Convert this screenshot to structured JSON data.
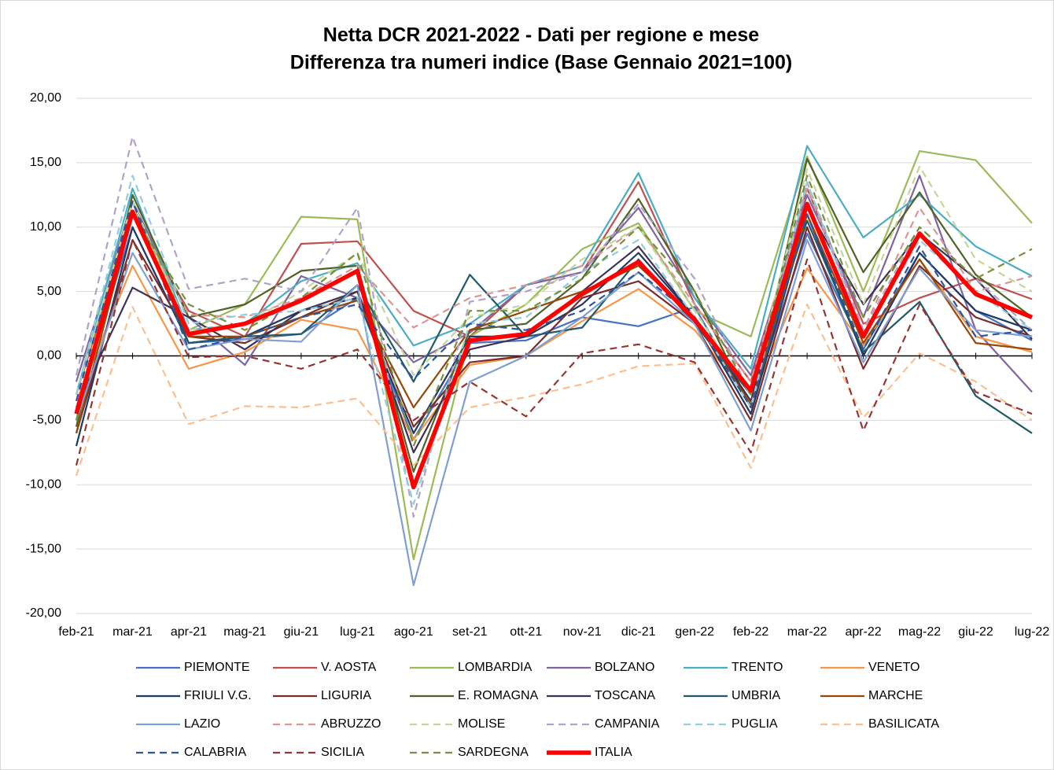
{
  "chart_data": {
    "type": "line",
    "title": "Netta DCR 2021-2022 - Dati per regione e mese",
    "subtitle": "Differenza tra numeri indice (Base Gennaio 2021=100)",
    "categories": [
      "feb-21",
      "mar-21",
      "apr-21",
      "mag-21",
      "giu-21",
      "lug-21",
      "ago-21",
      "set-21",
      "ott-21",
      "nov-21",
      "dic-21",
      "gen-22",
      "feb-22",
      "mar-22",
      "apr-22",
      "mag-22",
      "giu-22",
      "lug-22"
    ],
    "ylim": [
      -20,
      20
    ],
    "yticks": [
      {
        "value": -20,
        "label": "-20,00"
      },
      {
        "value": -15,
        "label": "-15,00"
      },
      {
        "value": -10,
        "label": "-10,00"
      },
      {
        "value": -5,
        "label": "-5,00"
      },
      {
        "value": 0,
        "label": "0,00"
      },
      {
        "value": 5,
        "label": "5,00"
      },
      {
        "value": 10,
        "label": "10,00"
      },
      {
        "value": 15,
        "label": "15,00"
      },
      {
        "value": 20,
        "label": "20,00"
      }
    ],
    "grid": true,
    "legend": "bottom",
    "series": [
      {
        "name": "PIEMONTE",
        "color": "#4472c4",
        "dashed": false,
        "values": [
          -4,
          10,
          1,
          1.3,
          1.7,
          4.5,
          -6.5,
          1,
          1.2,
          3,
          2.3,
          3.8,
          -3.8,
          9.5,
          0.5,
          8,
          3.5,
          1.2
        ]
      },
      {
        "name": "V. AOSTA",
        "color": "#c0504d",
        "dashed": false,
        "values": [
          -3,
          11,
          3.5,
          1.5,
          8.7,
          8.9,
          3.5,
          1.5,
          5.5,
          6.5,
          13.5,
          4,
          -2,
          13,
          2.5,
          4.5,
          6,
          4.4
        ]
      },
      {
        "name": "LOMBARDIA",
        "color": "#9bbb59",
        "dashed": false,
        "values": [
          -5,
          12,
          2,
          4,
          10.8,
          10.6,
          -15.8,
          1.5,
          4,
          8.3,
          10.3,
          3.5,
          1.5,
          15.5,
          5,
          15.9,
          15.2,
          10.3
        ]
      },
      {
        "name": "BOLZANO",
        "color": "#8064a2",
        "dashed": false,
        "values": [
          -2,
          12,
          3,
          -0.7,
          6.2,
          4.5,
          -0.5,
          1.8,
          5.5,
          6.5,
          11.5,
          4.5,
          -1.5,
          12.5,
          3,
          14,
          2,
          -2.8
        ]
      },
      {
        "name": "TRENTO",
        "color": "#4bacc6",
        "dashed": false,
        "values": [
          -3,
          13,
          2,
          2.5,
          5.8,
          7.2,
          0.8,
          2.5,
          5.5,
          7,
          14.2,
          4.5,
          -1,
          16.3,
          9.2,
          12.5,
          8.5,
          6.2
        ]
      },
      {
        "name": "VENETO",
        "color": "#f79646",
        "dashed": false,
        "values": [
          -3.5,
          7,
          -1,
          0.3,
          2.8,
          2,
          -6.5,
          -0.7,
          0,
          2.7,
          5.2,
          2,
          -3.5,
          6.8,
          0.8,
          7.5,
          1.5,
          0.3
        ]
      },
      {
        "name": "FRIULI V.G.",
        "color": "#1f3864",
        "dashed": false,
        "values": [
          -7,
          10,
          1,
          1.5,
          3.5,
          4.5,
          -6,
          1.5,
          1.5,
          4,
          8,
          3,
          -4.5,
          11,
          0,
          8,
          3.5,
          2
        ]
      },
      {
        "name": "LIGURIA",
        "color": "#772c2a",
        "dashed": false,
        "values": [
          -6,
          9,
          1.5,
          1,
          3,
          5,
          -5.5,
          -0.5,
          0,
          4.5,
          5.8,
          2.5,
          -5,
          10,
          -1,
          7,
          3,
          1.5
        ]
      },
      {
        "name": "E. ROMAGNA",
        "color": "#4f6228",
        "dashed": false,
        "values": [
          -5.5,
          12.5,
          3,
          4,
          6.6,
          7,
          -9,
          2,
          2.5,
          6,
          12.2,
          5,
          -4,
          15.3,
          6.5,
          12.7,
          6.3,
          3
        ]
      },
      {
        "name": "TOSCANA",
        "color": "#3f3151",
        "dashed": false,
        "values": [
          -4,
          5.3,
          3,
          0.5,
          3.5,
          5,
          -7.5,
          0.5,
          1.5,
          5,
          8.5,
          3,
          -3.5,
          11.5,
          4,
          9.5,
          6,
          1.3
        ]
      },
      {
        "name": "UMBRIA",
        "color": "#215968",
        "dashed": false,
        "values": [
          -5,
          12,
          1,
          1.5,
          1.7,
          5.5,
          -2,
          6.3,
          1.5,
          2.2,
          7.5,
          2.5,
          -3,
          10.5,
          0.3,
          4.2,
          -3.1,
          -6
        ]
      },
      {
        "name": "MARCHE",
        "color": "#974706",
        "dashed": false,
        "values": [
          -6,
          11,
          1.5,
          1.5,
          3,
          4.3,
          -4,
          2,
          3.5,
          5,
          7,
          3,
          -3.8,
          11,
          1,
          7.5,
          1,
          0.5
        ]
      },
      {
        "name": "LAZIO",
        "color": "#7f9fd0",
        "dashed": false,
        "values": [
          -5,
          8,
          0.5,
          1.3,
          1.1,
          5.5,
          -17.8,
          -2,
          0,
          3,
          6.5,
          2.5,
          -5.8,
          9,
          -0.5,
          6.8,
          2,
          1.5
        ]
      },
      {
        "name": "ABRUZZO",
        "color": "#d99694",
        "dashed": true,
        "values": [
          -4,
          11,
          3.2,
          3,
          4.5,
          7,
          2.2,
          4.5,
          5.5,
          7,
          10,
          4,
          -2,
          13,
          2,
          11.5,
          5,
          6.2
        ]
      },
      {
        "name": "MOLISE",
        "color": "#c3d69b",
        "dashed": true,
        "values": [
          -3,
          12,
          2,
          2.5,
          5,
          8,
          -1.5,
          3,
          4,
          7.5,
          10,
          3.5,
          -3,
          14.5,
          4,
          14.7,
          7.5,
          5
        ]
      },
      {
        "name": "CAMPANIA",
        "color": "#b3a2c7",
        "dashed": true,
        "values": [
          -1.5,
          17,
          5.2,
          6,
          5,
          11.5,
          -12.5,
          4.2,
          5,
          6.5,
          11.8,
          6,
          -3,
          13.5,
          2,
          10,
          6,
          2
        ]
      },
      {
        "name": "PUGLIA",
        "color": "#92cddc",
        "dashed": true,
        "values": [
          -3,
          14,
          2.5,
          3.2,
          3.5,
          4.5,
          -11.5,
          2.5,
          3,
          6.5,
          9,
          3,
          -4,
          13.5,
          1.5,
          9,
          5,
          2
        ]
      },
      {
        "name": "BASILICATA",
        "color": "#fac090",
        "dashed": true,
        "values": [
          -9.3,
          3.8,
          -5.3,
          -3.9,
          -4,
          -3.3,
          -8.5,
          -4,
          -3.2,
          -2.2,
          -0.8,
          -0.6,
          -8.7,
          4,
          -4.8,
          0.2,
          -2,
          -5
        ]
      },
      {
        "name": "CALABRIA",
        "color": "#2f5597",
        "dashed": true,
        "values": [
          -3.5,
          12,
          0.5,
          1.5,
          3,
          4,
          -1.8,
          2.5,
          2,
          3.5,
          6.5,
          3,
          -4,
          11,
          0.5,
          8.5,
          1.5,
          2
        ]
      },
      {
        "name": "SICILIA",
        "color": "#943634",
        "dashed": true,
        "values": [
          -8.5,
          9,
          -0.1,
          0,
          -1,
          0.5,
          -5,
          -2,
          -4.7,
          0.2,
          0.9,
          -0.5,
          -7.5,
          7.5,
          -5.8,
          4,
          -2.8,
          -4.5
        ]
      },
      {
        "name": "SARDEGNA",
        "color": "#76923c",
        "dashed": true,
        "values": [
          -5,
          11,
          4,
          2,
          4.5,
          8,
          -7,
          3.5,
          3.5,
          6,
          10,
          5,
          -3,
          14,
          3,
          10,
          6,
          8.3
        ]
      },
      {
        "name": "ITALIA",
        "color": "#ff0000",
        "dashed": false,
        "bold": true,
        "values": [
          -4.5,
          11.2,
          1.7,
          2.5,
          4.3,
          6.6,
          -10.2,
          1.2,
          1.7,
          4.8,
          7.3,
          2.8,
          -2.7,
          11.8,
          1.5,
          9.5,
          4.8,
          3
        ]
      }
    ]
  }
}
